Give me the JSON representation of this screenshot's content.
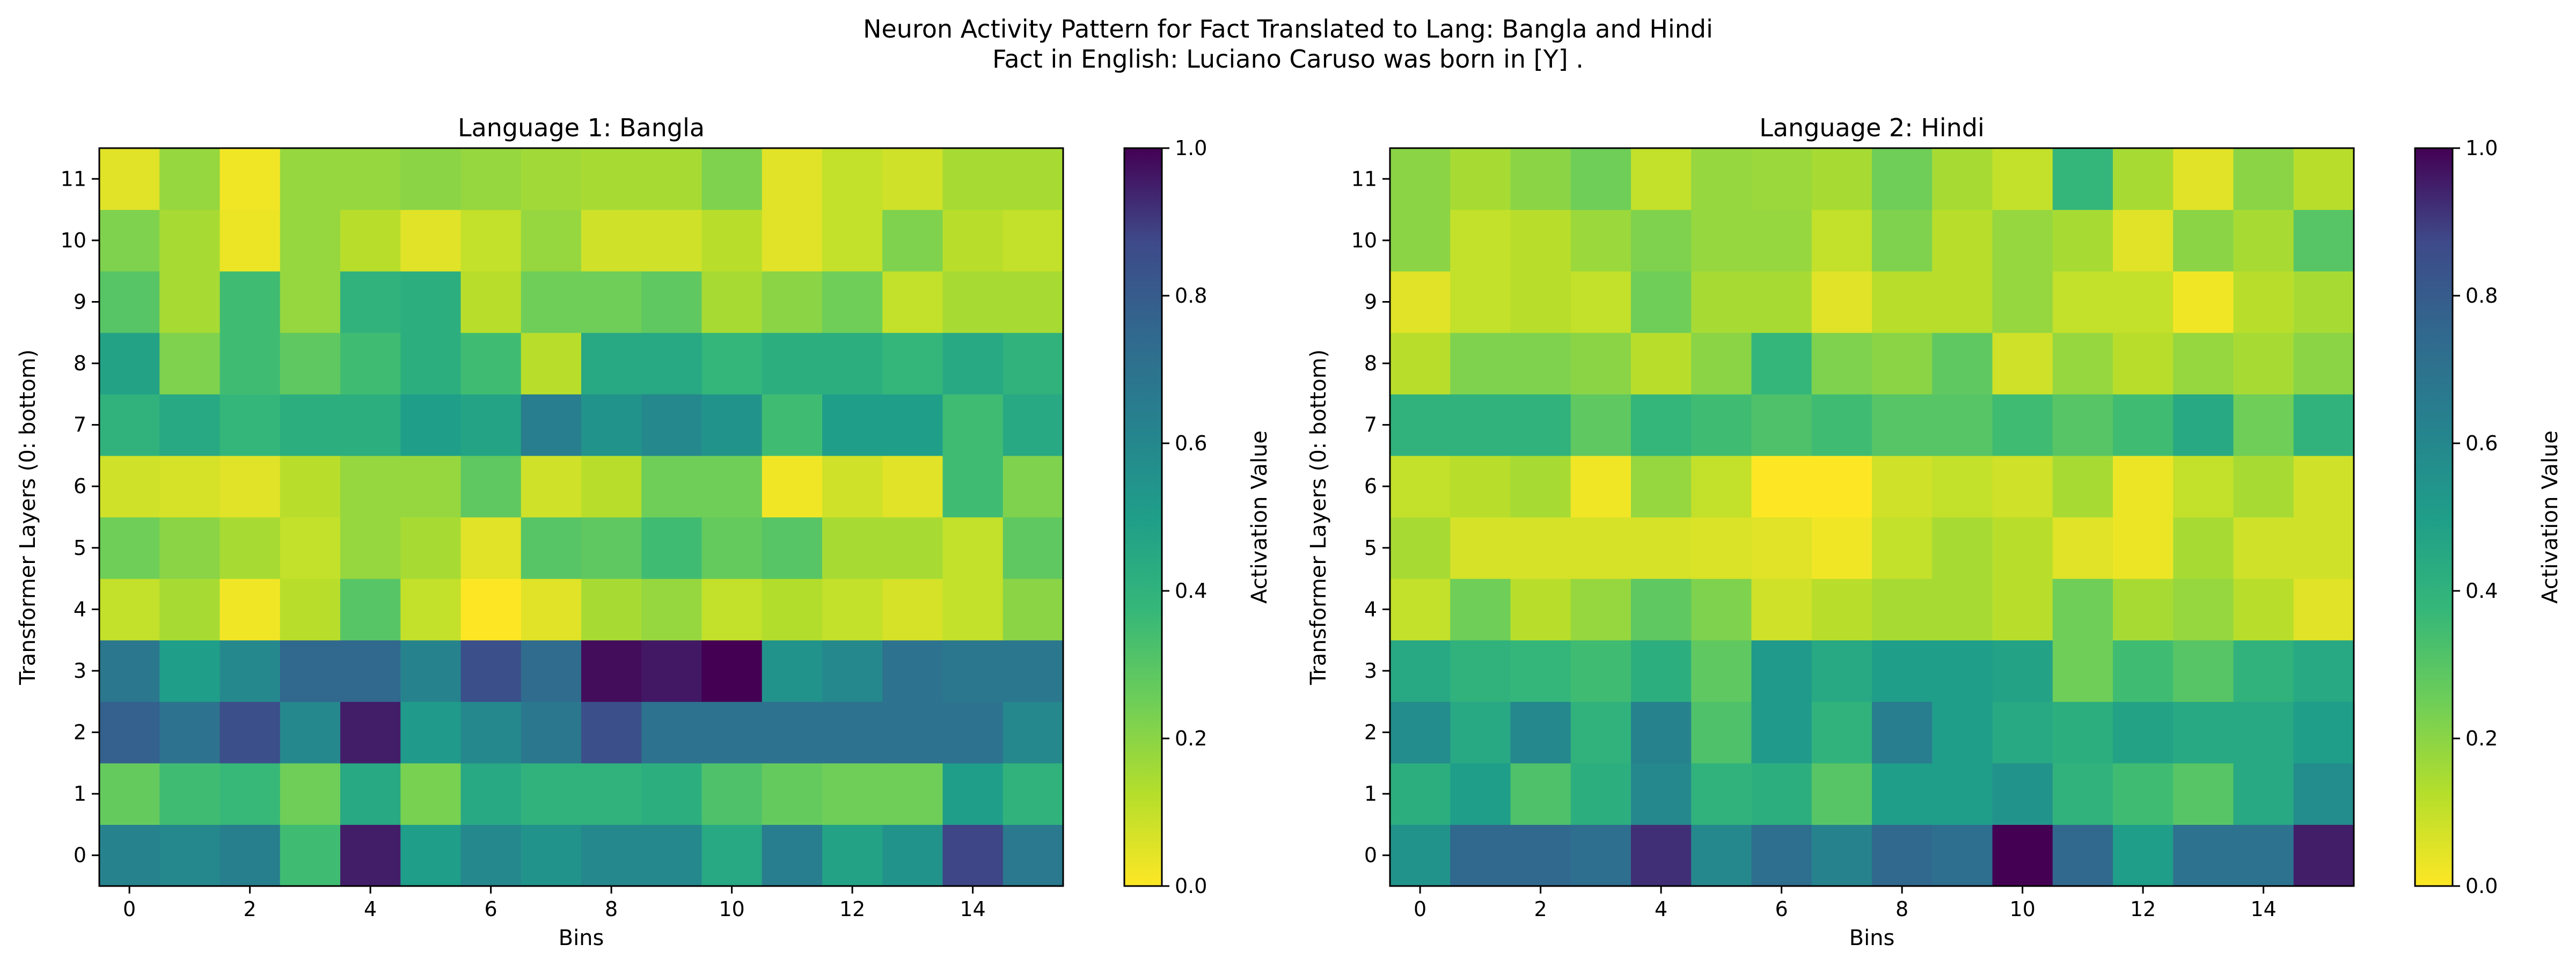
{
  "figure": {
    "title_line1": "Neuron Activity Pattern for Fact Translated to Lang: Bangla and Hindi",
    "title_line2": "Fact in English: Luciano Caruso was born in [Y] ."
  },
  "chart_data": [
    {
      "type": "heatmap",
      "title": "Language 1: Bangla",
      "xlabel": "Bins",
      "ylabel": "Transformer Layers (0: bottom)",
      "colorbar_label": "Activation Value",
      "colormap": "viridis_r",
      "vmin": 0.0,
      "vmax": 1.0,
      "x_ticks": [
        0,
        2,
        4,
        6,
        8,
        10,
        12,
        14
      ],
      "y_ticks": [
        0,
        1,
        2,
        3,
        4,
        5,
        6,
        7,
        8,
        9,
        10,
        11
      ],
      "colorbar_ticks": [
        "0.0",
        "0.2",
        "0.4",
        "0.6",
        "0.8",
        "1.0"
      ],
      "rows_bottom_to_top": [
        [
          0.62,
          0.6,
          0.64,
          0.35,
          0.95,
          0.5,
          0.6,
          0.55,
          0.6,
          0.6,
          0.45,
          0.65,
          0.48,
          0.55,
          0.88,
          0.67
        ],
        [
          0.27,
          0.35,
          0.37,
          0.25,
          0.45,
          0.23,
          0.45,
          0.4,
          0.4,
          0.42,
          0.32,
          0.27,
          0.25,
          0.25,
          0.5,
          0.4
        ],
        [
          0.78,
          0.7,
          0.85,
          0.6,
          0.95,
          0.52,
          0.6,
          0.68,
          0.85,
          0.7,
          0.7,
          0.7,
          0.7,
          0.7,
          0.7,
          0.6
        ],
        [
          0.68,
          0.5,
          0.6,
          0.75,
          0.75,
          0.62,
          0.85,
          0.73,
          0.98,
          0.96,
          1.0,
          0.55,
          0.6,
          0.7,
          0.68,
          0.68
        ],
        [
          0.1,
          0.15,
          0.02,
          0.12,
          0.3,
          0.1,
          0.0,
          0.05,
          0.15,
          0.18,
          0.1,
          0.13,
          0.1,
          0.07,
          0.1,
          0.2
        ],
        [
          0.25,
          0.2,
          0.15,
          0.1,
          0.18,
          0.15,
          0.05,
          0.3,
          0.28,
          0.35,
          0.27,
          0.3,
          0.15,
          0.15,
          0.1,
          0.28
        ],
        [
          0.08,
          0.07,
          0.05,
          0.12,
          0.18,
          0.18,
          0.28,
          0.08,
          0.12,
          0.25,
          0.25,
          0.02,
          0.08,
          0.05,
          0.35,
          0.22
        ],
        [
          0.4,
          0.45,
          0.38,
          0.42,
          0.42,
          0.5,
          0.47,
          0.65,
          0.55,
          0.6,
          0.55,
          0.35,
          0.5,
          0.5,
          0.35,
          0.45
        ],
        [
          0.48,
          0.22,
          0.35,
          0.28,
          0.35,
          0.42,
          0.35,
          0.12,
          0.45,
          0.45,
          0.38,
          0.42,
          0.42,
          0.38,
          0.45,
          0.4
        ],
        [
          0.3,
          0.15,
          0.35,
          0.18,
          0.4,
          0.42,
          0.12,
          0.25,
          0.25,
          0.28,
          0.15,
          0.2,
          0.25,
          0.1,
          0.15,
          0.15
        ],
        [
          0.22,
          0.15,
          0.03,
          0.18,
          0.12,
          0.05,
          0.1,
          0.18,
          0.08,
          0.08,
          0.12,
          0.05,
          0.1,
          0.22,
          0.12,
          0.1
        ],
        [
          0.05,
          0.18,
          0.02,
          0.18,
          0.18,
          0.2,
          0.18,
          0.16,
          0.15,
          0.15,
          0.22,
          0.05,
          0.1,
          0.08,
          0.15,
          0.15
        ]
      ]
    },
    {
      "type": "heatmap",
      "title": "Language 2: Hindi",
      "xlabel": "Bins",
      "ylabel": "Transformer Layers (0: bottom)",
      "colorbar_label": "Activation Value",
      "colormap": "viridis_r",
      "vmin": 0.0,
      "vmax": 1.0,
      "x_ticks": [
        0,
        2,
        4,
        6,
        8,
        10,
        12,
        14
      ],
      "y_ticks": [
        0,
        1,
        2,
        3,
        4,
        5,
        6,
        7,
        8,
        9,
        10,
        11
      ],
      "colorbar_ticks": [
        "0.0",
        "0.2",
        "0.4",
        "0.6",
        "0.8",
        "1.0"
      ],
      "rows_bottom_to_top": [
        [
          0.55,
          0.75,
          0.75,
          0.72,
          0.92,
          0.6,
          0.72,
          0.62,
          0.75,
          0.72,
          1.0,
          0.75,
          0.5,
          0.7,
          0.7,
          0.95
        ],
        [
          0.42,
          0.5,
          0.32,
          0.42,
          0.6,
          0.4,
          0.42,
          0.3,
          0.5,
          0.5,
          0.55,
          0.4,
          0.35,
          0.3,
          0.45,
          0.58
        ],
        [
          0.58,
          0.45,
          0.6,
          0.4,
          0.62,
          0.32,
          0.52,
          0.4,
          0.65,
          0.5,
          0.45,
          0.42,
          0.48,
          0.45,
          0.45,
          0.5
        ],
        [
          0.45,
          0.4,
          0.38,
          0.35,
          0.42,
          0.28,
          0.52,
          0.45,
          0.5,
          0.5,
          0.48,
          0.25,
          0.35,
          0.3,
          0.4,
          0.45
        ],
        [
          0.1,
          0.25,
          0.12,
          0.18,
          0.28,
          0.22,
          0.08,
          0.12,
          0.15,
          0.15,
          0.12,
          0.25,
          0.15,
          0.18,
          0.12,
          0.05
        ],
        [
          0.15,
          0.07,
          0.07,
          0.07,
          0.07,
          0.06,
          0.05,
          0.02,
          0.1,
          0.15,
          0.12,
          0.05,
          0.03,
          0.15,
          0.08,
          0.08
        ],
        [
          0.1,
          0.12,
          0.15,
          0.02,
          0.18,
          0.1,
          0.0,
          0.0,
          0.08,
          0.1,
          0.08,
          0.15,
          0.03,
          0.1,
          0.15,
          0.08
        ],
        [
          0.4,
          0.4,
          0.4,
          0.28,
          0.38,
          0.35,
          0.32,
          0.35,
          0.3,
          0.3,
          0.35,
          0.3,
          0.35,
          0.45,
          0.25,
          0.4
        ],
        [
          0.12,
          0.22,
          0.22,
          0.2,
          0.12,
          0.2,
          0.38,
          0.22,
          0.2,
          0.28,
          0.08,
          0.18,
          0.12,
          0.18,
          0.15,
          0.2
        ],
        [
          0.05,
          0.1,
          0.12,
          0.1,
          0.25,
          0.15,
          0.15,
          0.05,
          0.12,
          0.12,
          0.18,
          0.1,
          0.1,
          0.02,
          0.12,
          0.15
        ],
        [
          0.2,
          0.1,
          0.12,
          0.17,
          0.22,
          0.18,
          0.18,
          0.1,
          0.22,
          0.12,
          0.18,
          0.15,
          0.05,
          0.2,
          0.15,
          0.3
        ],
        [
          0.2,
          0.15,
          0.2,
          0.25,
          0.1,
          0.18,
          0.17,
          0.15,
          0.25,
          0.15,
          0.1,
          0.38,
          0.15,
          0.05,
          0.2,
          0.12
        ]
      ]
    }
  ]
}
